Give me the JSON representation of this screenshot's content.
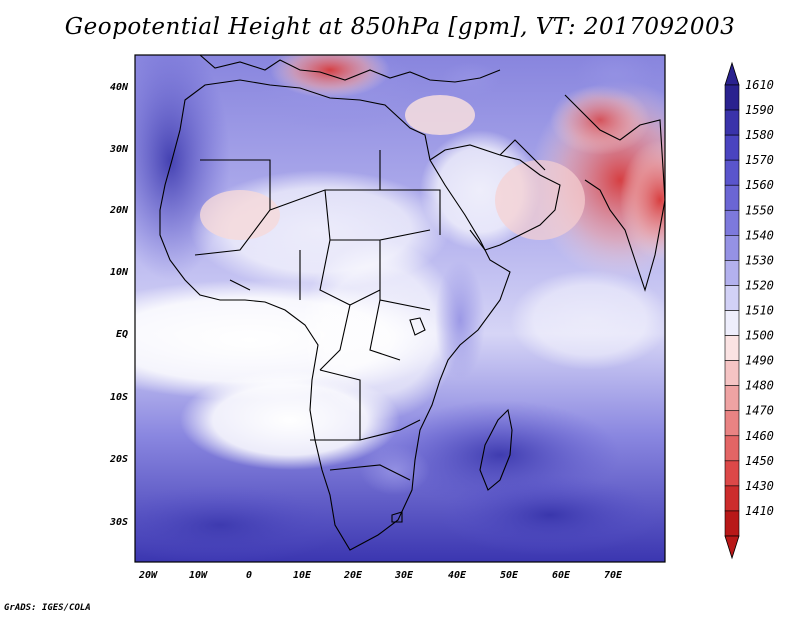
{
  "title": "Geopotential Height at 850hPa [gpm], VT: 2017092003",
  "credit": "GrADS: IGES/COLA",
  "map": {
    "lon_labels": [
      "20W",
      "10W",
      "0",
      "10E",
      "20E",
      "30E",
      "40E",
      "50E",
      "60E",
      "70E"
    ],
    "lat_labels": [
      "40N",
      "30N",
      "20N",
      "10N",
      "EQ",
      "10S",
      "20S",
      "30S"
    ]
  },
  "colorbar": {
    "levels": [
      "1610",
      "1590",
      "1580",
      "1570",
      "1560",
      "1550",
      "1540",
      "1530",
      "1520",
      "1510",
      "1500",
      "1490",
      "1480",
      "1470",
      "1460",
      "1450",
      "1430",
      "1410"
    ],
    "colors": [
      "#2a228f",
      "#3a33aa",
      "#4a44c0",
      "#5a55cc",
      "#6b66d4",
      "#7d79dc",
      "#9592e4",
      "#b3b1ee",
      "#d2d1f6",
      "#eeeefc",
      "#fbe3e3",
      "#f5c4c4",
      "#efa3a3",
      "#e98383",
      "#e36565",
      "#dc4848",
      "#cc2c2c",
      "#b81818"
    ]
  }
}
